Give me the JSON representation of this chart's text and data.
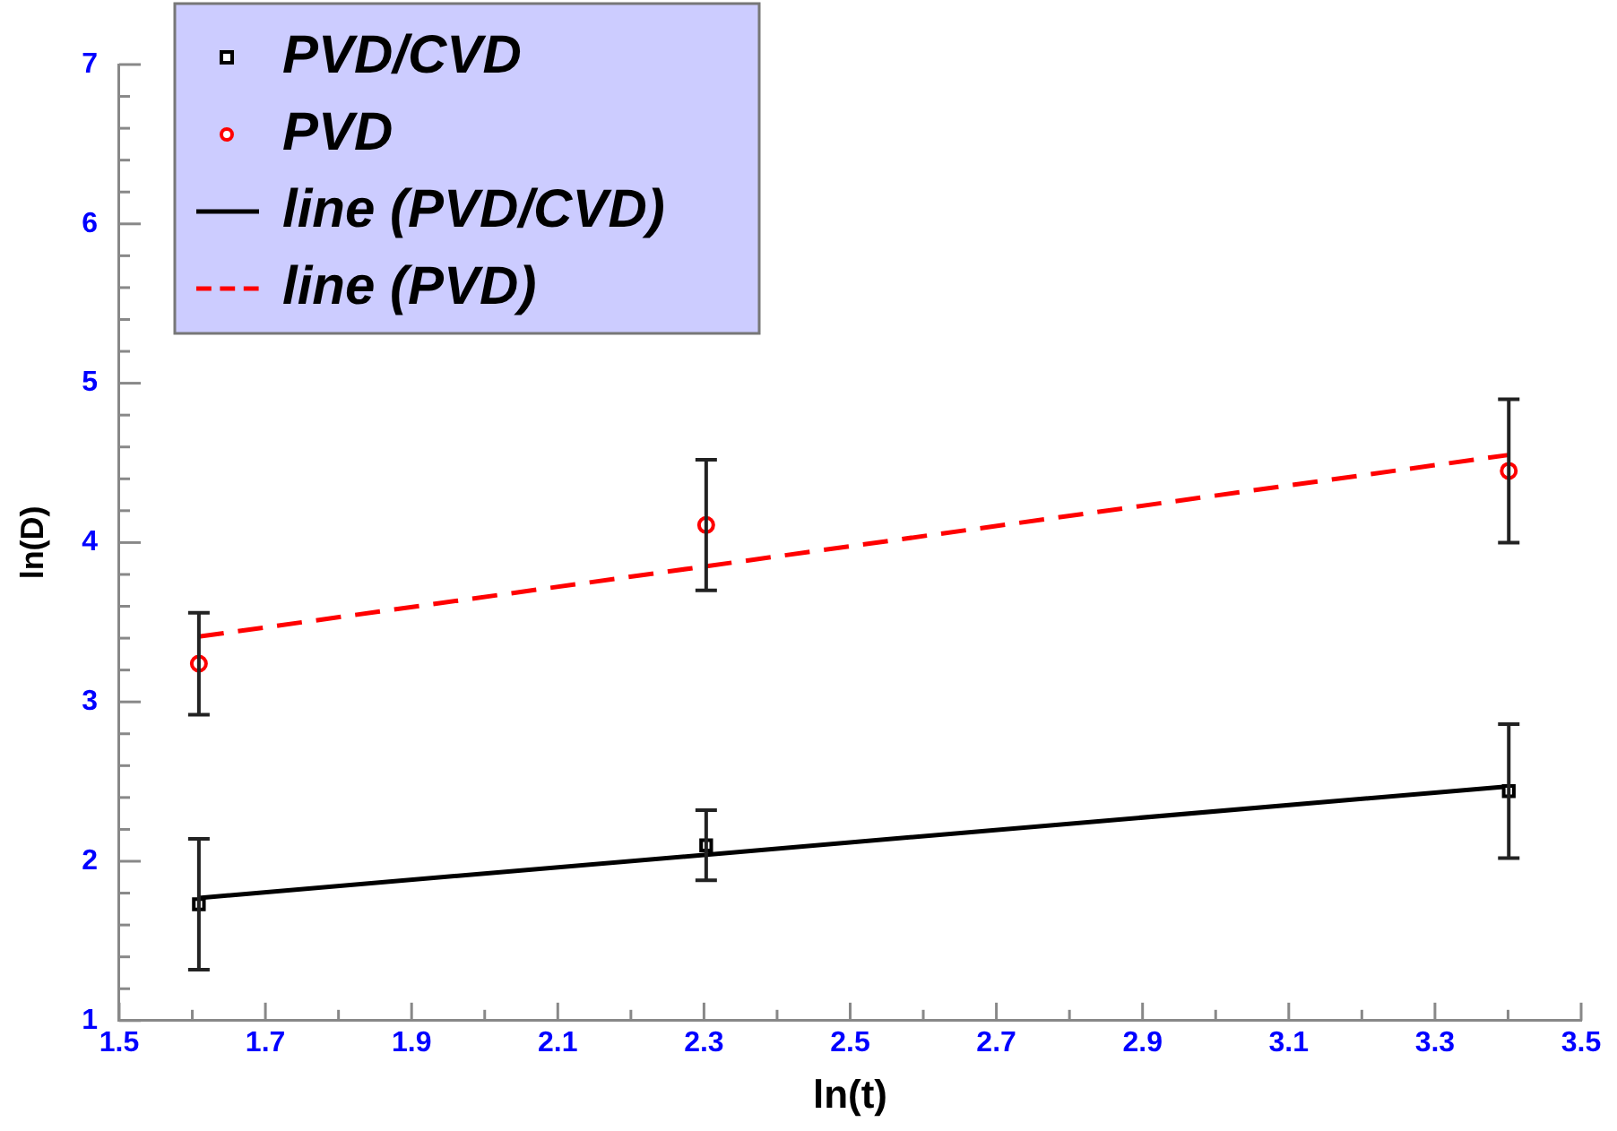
{
  "chart_data": {
    "type": "scatter",
    "xlabel": "ln(t)",
    "ylabel": "ln(D)",
    "xlim": [
      1.5,
      3.5
    ],
    "xticks": [
      1.5,
      1.7,
      1.9,
      2.1,
      2.3,
      2.5,
      2.7,
      2.9,
      3.1,
      3.3,
      3.5
    ],
    "ylim": [
      1,
      7
    ],
    "yticks": [
      1,
      2,
      3,
      4,
      5,
      6,
      7
    ],
    "grid": false,
    "legend": "top left",
    "series": [
      {
        "name": "PVD/CVD",
        "marker": "square",
        "color": "#000000",
        "x": [
          1.609,
          2.303,
          3.401
        ],
        "values": [
          1.73,
          2.1,
          2.44
        ],
        "errors": [
          0.41,
          0.22,
          0.42
        ]
      },
      {
        "name": "PVD",
        "marker": "circle",
        "color": "#ff0000",
        "x": [
          1.609,
          2.303,
          3.401
        ],
        "values": [
          3.24,
          4.11,
          4.45
        ],
        "errors": [
          0.32,
          0.41,
          0.45
        ]
      },
      {
        "name": "line (PVD/CVD)",
        "type": "line",
        "marker": "none",
        "line_style": "solid",
        "color": "#000000",
        "x": [
          1.609,
          3.401
        ],
        "values": [
          1.77,
          2.47
        ]
      },
      {
        "name": "line (PVD)",
        "type": "line",
        "marker": "none",
        "line_style": "dashed",
        "color": "#ff0000",
        "x": [
          1.609,
          3.401
        ],
        "values": [
          3.41,
          4.55
        ]
      }
    ]
  }
}
